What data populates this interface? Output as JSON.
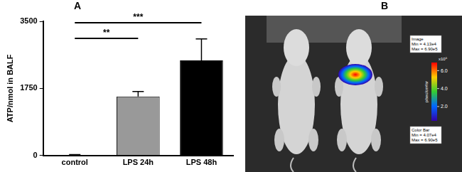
{
  "chart_data": {
    "type": "bar",
    "panel_label": "A",
    "categories": [
      "control",
      "LPS 24h",
      "LPS 48h"
    ],
    "values": [
      15,
      1540,
      2480
    ],
    "errors": [
      10,
      130,
      560
    ],
    "colors": [
      "#ffffff",
      "#999999",
      "#000000"
    ],
    "y_label": "ATP/nmol in BALF",
    "ylim": [
      0,
      3500
    ],
    "yticks": [
      0,
      1750,
      3500
    ],
    "grid": false,
    "annotations": [
      {
        "from": "control",
        "to": "LPS 24h",
        "label": "**"
      },
      {
        "from": "control",
        "to": "LPS 48h",
        "label": "***"
      }
    ]
  },
  "image_panel": {
    "panel_label": "B",
    "image": {
      "title": "Image",
      "min_label": "Min = 4.13e4",
      "max_label": "Max = 6.90e5"
    },
    "color_bar": {
      "title": "Color Bar",
      "min_label": "Min = 4.07e4",
      "max_label": "Max = 6.90e5",
      "range": [
        40700,
        690000
      ],
      "ticks": [
        {
          "value": 200000,
          "label": "2.0"
        },
        {
          "value": 400000,
          "label": "4.0"
        },
        {
          "value": 600000,
          "label": "6.0"
        }
      ],
      "scale_label": "x10⁵",
      "unit": "p/sec/cm²/sr"
    }
  }
}
